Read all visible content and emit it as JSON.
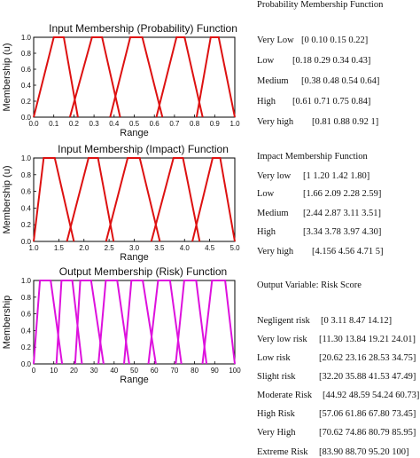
{
  "chart_data": [
    {
      "type": "line",
      "title": "Input Membership (Probability) Function",
      "xlabel": "Range",
      "ylabel": "Membership (u)",
      "xlim": [
        0.0,
        1.0
      ],
      "ylim": [
        0.0,
        1.0
      ],
      "xticks": [
        "0.0",
        "0.1",
        "0.2",
        "0.3",
        "0.4",
        "0.5",
        "0.6",
        "0.7",
        "0.8",
        "0.9",
        "1.0"
      ],
      "yticks": [
        "0.0",
        "0.2",
        "0.4",
        "0.6",
        "0.8",
        "1.0"
      ],
      "color": "#dd1111",
      "series": [
        {
          "x": [
            0,
            0.1,
            0.15,
            0.22
          ],
          "y": [
            0,
            1,
            1,
            0
          ]
        },
        {
          "x": [
            0.18,
            0.29,
            0.34,
            0.43
          ],
          "y": [
            0,
            1,
            1,
            0
          ]
        },
        {
          "x": [
            0.38,
            0.48,
            0.54,
            0.64
          ],
          "y": [
            0,
            1,
            1,
            0
          ]
        },
        {
          "x": [
            0.61,
            0.71,
            0.75,
            0.84
          ],
          "y": [
            0,
            1,
            1,
            0
          ]
        },
        {
          "x": [
            0.81,
            0.88,
            0.92,
            1.0
          ],
          "y": [
            0,
            1,
            1,
            0
          ]
        }
      ]
    },
    {
      "type": "line",
      "title": "Input Membership (Impact) Function",
      "xlabel": "Range",
      "ylabel": "Membership (u)",
      "xlim": [
        1.0,
        5.0
      ],
      "ylim": [
        0.0,
        1.0
      ],
      "xticks": [
        "1.0",
        "1.5",
        "2.0",
        "2.5",
        "3.0",
        "3.5",
        "4.0",
        "4.5",
        "5.0"
      ],
      "yticks": [
        "0.0",
        "0.2",
        "0.4",
        "0.6",
        "0.8",
        "1.0"
      ],
      "color": "#dd1111",
      "series": [
        {
          "x": [
            1,
            1.2,
            1.42,
            1.8
          ],
          "y": [
            0,
            1,
            1,
            0
          ]
        },
        {
          "x": [
            1.66,
            2.09,
            2.28,
            2.59
          ],
          "y": [
            0,
            1,
            1,
            0
          ]
        },
        {
          "x": [
            2.44,
            2.87,
            3.11,
            3.51
          ],
          "y": [
            0,
            1,
            1,
            0
          ]
        },
        {
          "x": [
            3.34,
            3.78,
            3.97,
            4.3
          ],
          "y": [
            0,
            1,
            1,
            0
          ]
        },
        {
          "x": [
            4.156,
            4.56,
            4.71,
            5
          ],
          "y": [
            0,
            1,
            1,
            0
          ]
        }
      ]
    },
    {
      "type": "line",
      "title": "Output Membership (Risk) Function",
      "xlabel": "Range",
      "ylabel": "Membership",
      "xlim": [
        0,
        100
      ],
      "ylim": [
        0.0,
        1.0
      ],
      "xticks": [
        "0",
        "10",
        "20",
        "30",
        "40",
        "50",
        "60",
        "70",
        "80",
        "90",
        "100"
      ],
      "yticks": [
        "0.0",
        "0.2",
        "0.4",
        "0.6",
        "0.8",
        "1.0"
      ],
      "color": "#dd11dd",
      "series": [
        {
          "x": [
            0,
            3.11,
            8.47,
            14.12
          ],
          "y": [
            0,
            1,
            1,
            0
          ]
        },
        {
          "x": [
            11.3,
            13.84,
            19.21,
            24.01
          ],
          "y": [
            0,
            1,
            1,
            0
          ]
        },
        {
          "x": [
            20.62,
            23.16,
            28.53,
            34.75
          ],
          "y": [
            0,
            1,
            1,
            0
          ]
        },
        {
          "x": [
            32.2,
            35.88,
            41.53,
            47.49
          ],
          "y": [
            0,
            1,
            1,
            0
          ]
        },
        {
          "x": [
            44.92,
            48.59,
            54.24,
            60.73
          ],
          "y": [
            0,
            1,
            1,
            0
          ]
        },
        {
          "x": [
            57.06,
            61.86,
            67.8,
            73.45
          ],
          "y": [
            0,
            1,
            1,
            0
          ]
        },
        {
          "x": [
            70.62,
            74.86,
            80.79,
            85.95
          ],
          "y": [
            0,
            1,
            1,
            0
          ]
        },
        {
          "x": [
            83.9,
            88.7,
            95.2,
            100
          ],
          "y": [
            0,
            1,
            1,
            0
          ]
        }
      ]
    }
  ],
  "panel": {
    "prob": {
      "heading": "Probability Membership Function",
      "rows": [
        {
          "label": "Very Low",
          "values": "[0  0.10 0.15 0.22]"
        },
        {
          "label": "Low",
          "values": "[0.18 0.29 0.34 0.43]"
        },
        {
          "label": "Medium",
          "values": "[0.38 0.48 0.54 0.64]"
        },
        {
          "label": "High",
          "values": "[0.61 0.71 0.75 0.84]"
        },
        {
          "label": "Very high",
          "values": "[0.81 0.88 0.92 1]"
        }
      ]
    },
    "impact": {
      "heading": "Impact Membership Function",
      "rows": [
        {
          "label": "Very low",
          "values": "[1 1.20 1.42 1.80]"
        },
        {
          "label": "Low",
          "values": "[1.66 2.09 2.28 2.59]"
        },
        {
          "label": "Medium",
          "values": "[2.44 2.87 3.11 3.51]"
        },
        {
          "label": "High",
          "values": "[3.34 3.78 3.97 4.30]"
        },
        {
          "label": "Very high",
          "values": "[4.156 4.56 4.71 5]"
        }
      ]
    },
    "risk": {
      "heading": "Output Variable: Risk Score",
      "rows": [
        {
          "label": "Negligent risk",
          "values": "[0  3.11  8.47  14.12]"
        },
        {
          "label": "Very low risk",
          "values": "[11.30 13.84 19.21 24.01]"
        },
        {
          "label": "Low risk",
          "values": "[20.62 23.16 28.53 34.75]"
        },
        {
          "label": "Slight risk",
          "values": "[32.20 35.88 41.53 47.49]"
        },
        {
          "label": "Moderate Risk",
          "values": "[44.92 48.59  54.24 60.73]"
        },
        {
          "label": "High Risk",
          "values": "[57.06 61.86 67.80 73.45]"
        },
        {
          "label": "Very High",
          "values": "[70.62 74.86 80.79 85.95]"
        },
        {
          "label": "Extreme Risk",
          "values": "[83.90 88.70 95.20 100]"
        }
      ]
    }
  }
}
